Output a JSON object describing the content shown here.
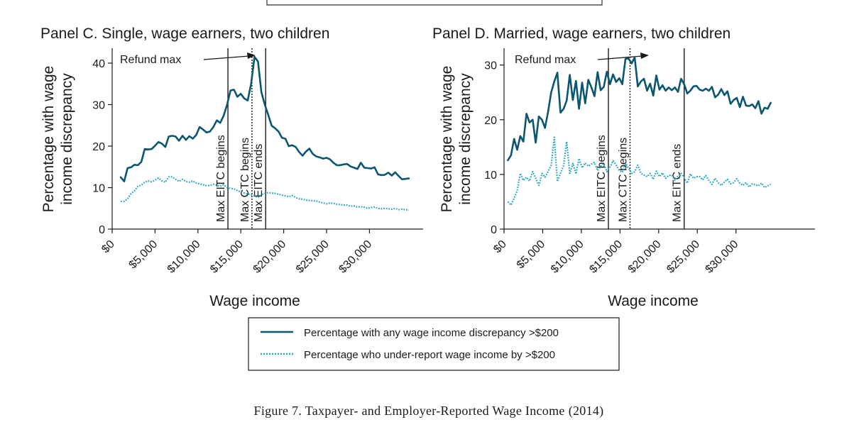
{
  "figure": {
    "caption_prefix": "Figure 7. ",
    "caption_main": "Taxpayer- and Employer-Reported Wage Income",
    "caption_year": "(2014)"
  },
  "legend": {
    "items": [
      {
        "label": "Percentage with any wage income discrepancy >$200",
        "style": "solid",
        "color": "#0b5670"
      },
      {
        "label": "Percentage who under-report wage income by >$200",
        "style": "dotted",
        "color": "#2aa7c7"
      }
    ]
  },
  "chart_data": [
    {
      "type": "line",
      "title": "Panel C. Single, wage earners, two children",
      "xlabel": "Wage income",
      "ylabel_lines": [
        "Percentage with wage",
        "income discrepancy"
      ],
      "xlim": [
        0,
        35000
      ],
      "ylim": [
        0,
        43
      ],
      "xticks": [
        0,
        5000,
        10000,
        15000,
        20000,
        25000,
        30000
      ],
      "xtick_labels": [
        "$0",
        "$5,000",
        "$10,000",
        "$15,000",
        "$20,000",
        "$25,000",
        "$30,000"
      ],
      "yticks": [
        0,
        10,
        20,
        30,
        40
      ],
      "ytick_labels": [
        "0",
        "10",
        "20",
        "30",
        "40"
      ],
      "vlines": [
        {
          "x": 13500,
          "style": "solid",
          "label": "Max EITC begins"
        },
        {
          "x": 16300,
          "style": "dotted",
          "label": "Max CTC begins"
        },
        {
          "x": 17900,
          "style": "solid",
          "label": "Max EITC ends"
        }
      ],
      "annotation": {
        "text": "Refund max",
        "x": 16300,
        "y": 42
      },
      "x": [
        1000,
        1400,
        1800,
        2200,
        2600,
        3000,
        3400,
        3800,
        4200,
        4600,
        5000,
        5400,
        5800,
        6200,
        6600,
        7000,
        7400,
        7800,
        8200,
        8600,
        9000,
        9400,
        9800,
        10200,
        10600,
        11000,
        11400,
        11800,
        12200,
        12600,
        13000,
        13400,
        13800,
        14200,
        14600,
        15000,
        15400,
        15800,
        16200,
        16600,
        17000,
        17400,
        17800,
        18200,
        18600,
        19000,
        19400,
        19800,
        20200,
        20600,
        21000,
        21400,
        21800,
        22200,
        22600,
        23000,
        23400,
        23800,
        24200,
        24600,
        25000,
        25400,
        25800,
        26200,
        26600,
        27000,
        27400,
        27800,
        28200,
        28600,
        29000,
        29400,
        29800,
        30200,
        30600,
        31000,
        31400,
        31800,
        32200,
        32600,
        33000,
        33400,
        33800,
        34200,
        34600
      ],
      "series": [
        {
          "name": "Percentage with any wage income discrepancy >$200",
          "style": "solid",
          "values": [
            12.5,
            11.5,
            14.7,
            14.9,
            15.5,
            15.4,
            16.2,
            19.3,
            19.2,
            19.3,
            20.1,
            21.0,
            20.6,
            19.8,
            22.3,
            22.5,
            22.3,
            21.3,
            22.5,
            21.5,
            22.4,
            21.8,
            22.7,
            24.6,
            24.0,
            23.3,
            23.5,
            24.6,
            26.2,
            25.6,
            27.3,
            30.0,
            33.4,
            33.6,
            31.9,
            32.6,
            31.5,
            31.0,
            35.0,
            41.5,
            40.4,
            33.0,
            30.0,
            27.5,
            24.9,
            24.3,
            23.5,
            22.0,
            21.8,
            20.0,
            20.2,
            19.8,
            18.6,
            17.7,
            18.7,
            19.4,
            18.1,
            17.5,
            17.3,
            17.0,
            17.2,
            16.8,
            16.0,
            15.4,
            15.4,
            15.6,
            15.7,
            15.1,
            14.8,
            14.5,
            16.0,
            14.8,
            14.7,
            14.6,
            14.9,
            13.2,
            13.0,
            13.1,
            13.6,
            12.9,
            13.7,
            12.8,
            12.0,
            12.1,
            12.2
          ]
        },
        {
          "name": "Percentage who under-report wage income by >$200",
          "style": "dotted",
          "values": [
            6.7,
            6.7,
            7.3,
            8.6,
            9.2,
            10.3,
            10.6,
            11.3,
            11.6,
            11.4,
            11.8,
            12.3,
            11.6,
            11.3,
            12.6,
            12.6,
            12.0,
            11.5,
            12.0,
            11.5,
            11.3,
            11.6,
            11.1,
            10.9,
            10.7,
            10.5,
            10.5,
            10.8,
            10.6,
            10.3,
            10.7,
            10.0,
            9.8,
            9.7,
            9.3,
            9.0,
            8.7,
            8.5,
            8.3,
            8.0,
            7.6,
            8.3,
            8.6,
            8.8,
            8.7,
            8.6,
            8.4,
            8.2,
            8.0,
            7.8,
            8.1,
            7.6,
            7.3,
            7.2,
            7.0,
            6.9,
            6.8,
            6.8,
            6.5,
            6.3,
            6.1,
            6.3,
            6.2,
            6.0,
            5.9,
            5.8,
            5.8,
            5.5,
            5.6,
            5.3,
            5.4,
            5.3,
            5.0,
            5.2,
            5.3,
            5.0,
            4.9,
            5.0,
            4.9,
            4.8,
            5.0,
            4.7,
            4.8,
            4.7,
            4.6
          ]
        }
      ]
    },
    {
      "type": "line",
      "title": "Panel D. Married, wage earners, two children",
      "xlabel": "Wage income",
      "ylabel_lines": [
        "Percentage with wage",
        "income discrepancy"
      ],
      "xlim": [
        0,
        35000
      ],
      "ylim": [
        0,
        33
      ],
      "xticks": [
        0,
        5000,
        10000,
        15000,
        20000,
        25000,
        30000
      ],
      "xtick_labels": [
        "$0",
        "$5,000",
        "$10,000",
        "$15,000",
        "$20,000",
        "$25,000",
        "$30,000"
      ],
      "yticks": [
        0,
        10,
        20,
        30
      ],
      "ytick_labels": [
        "0",
        "10",
        "20",
        "30"
      ],
      "vlines": [
        {
          "x": 13500,
          "style": "solid",
          "label": "Max EITC begins"
        },
        {
          "x": 16300,
          "style": "dotted",
          "label": "Max CTC begins"
        },
        {
          "x": 23300,
          "style": "solid",
          "label": "Max EITC ends"
        }
      ],
      "annotation": {
        "text": "Refund max",
        "x": 16300,
        "y": 31
      },
      "x": [
        500,
        900,
        1300,
        1700,
        2100,
        2500,
        2900,
        3300,
        3700,
        4100,
        4500,
        4900,
        5300,
        5700,
        6100,
        6500,
        6900,
        7300,
        7700,
        8100,
        8500,
        8900,
        9300,
        9700,
        10100,
        10500,
        10900,
        11300,
        11700,
        12100,
        12500,
        12900,
        13300,
        13700,
        14100,
        14500,
        14900,
        15300,
        15700,
        16100,
        16500,
        16900,
        17300,
        17700,
        18100,
        18500,
        18900,
        19300,
        19700,
        20100,
        20500,
        20900,
        21300,
        21700,
        22100,
        22500,
        22900,
        23300,
        23700,
        24100,
        24500,
        24900,
        25300,
        25700,
        26100,
        26500,
        26900,
        27300,
        27700,
        28100,
        28500,
        28900,
        29300,
        29700,
        30100,
        30500,
        30900,
        31300,
        31700,
        32100,
        32500,
        32900,
        33300,
        33700,
        34100,
        34500
      ],
      "series": [
        {
          "name": "Percentage with any wage income discrepancy >$200",
          "style": "solid",
          "values": [
            12.6,
            13.5,
            16.5,
            14.5,
            17.0,
            16.0,
            21.1,
            19.5,
            20.0,
            15.8,
            20.6,
            20.0,
            18.5,
            21.5,
            25.0,
            27.0,
            28.6,
            21.3,
            22.0,
            23.5,
            28.2,
            23.6,
            27.1,
            22.0,
            26.8,
            23.0,
            27.3,
            25.9,
            24.3,
            28.7,
            25.4,
            26.0,
            28.8,
            26.5,
            28.3,
            26.9,
            27.6,
            26.5,
            31.1,
            31.2,
            30.3,
            31.4,
            26.1,
            27.0,
            27.5,
            25.3,
            26.6,
            24.4,
            28.1,
            25.5,
            26.3,
            25.3,
            25.9,
            25.4,
            25.9,
            25.1,
            27.5,
            26.5,
            24.8,
            25.3,
            26.1,
            26.2,
            25.5,
            25.3,
            25.7,
            25.3,
            26.0,
            24.1,
            24.6,
            25.6,
            24.5,
            25.2,
            22.9,
            23.6,
            24.0,
            22.3,
            24.2,
            22.6,
            22.5,
            22.8,
            22.1,
            23.4,
            21.1,
            22.2,
            22.0,
            23.1
          ]
        },
        {
          "name": "Percentage who under-report wage income by >$200",
          "style": "dotted",
          "values": [
            5.0,
            4.4,
            5.6,
            7.0,
            10.2,
            8.9,
            9.5,
            8.8,
            10.5,
            9.3,
            8.0,
            10.2,
            9.5,
            10.5,
            11.7,
            16.8,
            8.7,
            10.2,
            11.6,
            16.0,
            10.2,
            12.0,
            10.1,
            12.9,
            11.2,
            12.1,
            11.5,
            11.9,
            12.2,
            10.7,
            11.5,
            12.0,
            10.5,
            11.3,
            12.5,
            11.7,
            10.7,
            10.4,
            12.0,
            11.2,
            10.2,
            10.5,
            11.7,
            10.2,
            9.9,
            9.6,
            10.2,
            9.1,
            10.6,
            9.6,
            10.3,
            9.3,
            9.8,
            9.9,
            8.9,
            9.7,
            10.2,
            9.4,
            8.4,
            10.1,
            9.3,
            9.6,
            9.6,
            9.0,
            9.8,
            8.9,
            8.2,
            9.3,
            8.5,
            8.0,
            8.6,
            9.1,
            8.3,
            8.5,
            9.2,
            8.4,
            8.0,
            8.5,
            7.7,
            8.3,
            8.1,
            7.9,
            8.4,
            7.6,
            7.9,
            8.2
          ]
        }
      ]
    }
  ]
}
